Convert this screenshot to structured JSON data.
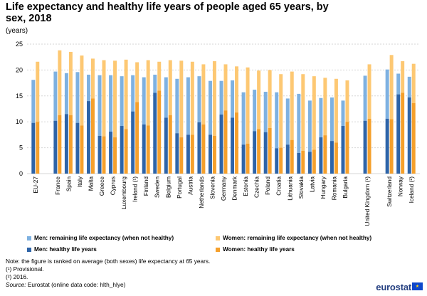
{
  "title": "Life expectancy and healthy life years of people aged 65 years, by sex, 2018",
  "unit": "(years)",
  "colors": {
    "men_not_healthy": "#7eb1e1",
    "men_healthy": "#2e64a8",
    "women_not_healthy": "#fdc873",
    "women_healthy": "#f5a02c",
    "grid": "#d6d6d6",
    "brand": "#243f80"
  },
  "legend": {
    "men_not_healthy": "Men: remaining life expectancy (when not healthy)",
    "women_not_healthy": "Women: remaining life expectancy (when not healthy)",
    "men_healthy": "Men: healthy life years",
    "women_healthy": "Women: healthy life years"
  },
  "notes": {
    "note": "Note: the figure is ranked on average (both sexes) life expectancy at 65 years.",
    "provisional": "(¹) Provisional.",
    "year_2016": "(²) 2016.",
    "source_label": "Source:",
    "source_text": " Eurostat (online data code: hlth_hlye)"
  },
  "brand": "eurostat",
  "chart_data": {
    "type": "bar",
    "stacked": true,
    "ylim": [
      0,
      25
    ],
    "yticks": [
      0,
      5,
      10,
      15,
      20,
      25
    ],
    "grid": true,
    "legend_position": "bottom",
    "categories": [
      "EU-27",
      "France",
      "Spain",
      "Italy",
      "Malta",
      "Greece",
      "Cyprus",
      "Luxembourg",
      "Ireland (¹)",
      "Finland",
      "Sweden",
      "Belgium",
      "Portugal",
      "Austria",
      "Netherlands",
      "Slovenia",
      "Germany",
      "Denmark",
      "Estonia",
      "Czechia",
      "Poland",
      "Croatia",
      "Lithuania",
      "Slovakia",
      "Latvia",
      "Hungary",
      "Romania",
      "Bulgaria",
      "United Kingdom (¹)",
      "Switzerland",
      "Norway",
      "Iceland (²)"
    ],
    "groups": [
      1,
      27,
      1,
      3
    ],
    "men_total": [
      18.1,
      19.7,
      19.4,
      19.6,
      19.1,
      19.0,
      19.0,
      18.8,
      19.0,
      18.6,
      19.1,
      18.6,
      18.3,
      18.6,
      18.8,
      17.9,
      17.9,
      18.0,
      15.7,
      16.2,
      15.8,
      15.7,
      14.5,
      15.4,
      14.1,
      14.6,
      14.7,
      14.1,
      18.9,
      20.1,
      19.3,
      18.7
    ],
    "men_healthy": [
      9.8,
      10.2,
      11.5,
      9.8,
      14.0,
      7.3,
      8.1,
      9.2,
      12.0,
      9.5,
      15.6,
      10.8,
      7.8,
      7.5,
      9.9,
      7.5,
      11.4,
      10.8,
      5.6,
      8.2,
      8.0,
      4.9,
      5.6,
      4.0,
      4.2,
      7.0,
      6.3,
      9.2,
      10.2,
      10.6,
      15.3,
      14.7
    ],
    "women_total": [
      21.6,
      23.8,
      23.5,
      22.8,
      22.2,
      21.9,
      21.8,
      22.0,
      21.5,
      21.9,
      21.6,
      21.9,
      21.8,
      21.6,
      21.1,
      21.7,
      21.1,
      20.7,
      20.5,
      19.9,
      20.0,
      19.2,
      19.7,
      19.2,
      18.8,
      18.5,
      18.3,
      18.0,
      21.1,
      22.9,
      21.7,
      21.2
    ],
    "women_healthy": [
      10.0,
      11.3,
      11.3,
      9.3,
      14.5,
      7.2,
      7.0,
      8.6,
      13.8,
      9.3,
      16.0,
      11.3,
      7.0,
      7.5,
      9.5,
      7.3,
      12.2,
      11.8,
      5.8,
      8.6,
      8.8,
      5.0,
      6.5,
      4.4,
      4.6,
      7.4,
      6.0,
      10.0,
      10.6,
      10.5,
      15.6,
      13.6
    ]
  }
}
